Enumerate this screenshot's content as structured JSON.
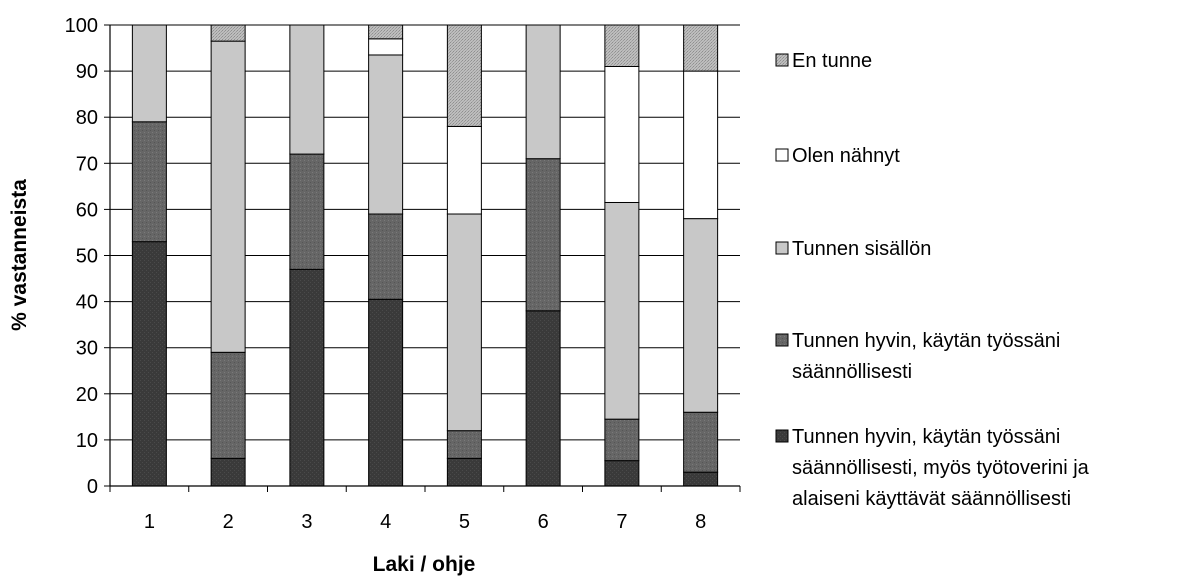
{
  "chart_data": {
    "type": "bar",
    "stacked": true,
    "percent": true,
    "xlabel": "Laki / ohje",
    "ylabel": "% vastanneista",
    "ylim": [
      0,
      100
    ],
    "yticks": [
      0,
      10,
      20,
      30,
      40,
      50,
      60,
      70,
      80,
      90,
      100
    ],
    "categories": [
      "1",
      "2",
      "3",
      "4",
      "5",
      "6",
      "7",
      "8"
    ],
    "grid": "horizontal",
    "legend_position": "right",
    "series": [
      {
        "name": "Tunnen hyvin, käytän työssäni säännöllisesti, myös työtoverini ja alaiseni käyttävät säännöllisesti",
        "color": "#3a3a3a",
        "values": [
          53,
          6,
          47,
          40.5,
          6,
          38,
          5.5,
          3
        ]
      },
      {
        "name": "Tunnen hyvin, käytän työssäni säännöllisesti",
        "color": "#6a6a6a",
        "values": [
          26,
          23,
          25,
          18.5,
          6,
          33,
          9,
          13
        ]
      },
      {
        "name": "Tunnen sisällön",
        "color": "#c8c8c8",
        "values": [
          21,
          67.5,
          28,
          34.5,
          47,
          29,
          47,
          42
        ]
      },
      {
        "name": "Olen nähnyt",
        "color": "#ffffff",
        "values": [
          0,
          0,
          0,
          3.5,
          19,
          0,
          29.5,
          32
        ]
      },
      {
        "name": "En tunne",
        "color": "#b0b0b0",
        "values": [
          0,
          3.5,
          0,
          3,
          22,
          0,
          9,
          10
        ]
      }
    ],
    "legend_order": [
      "En tunne",
      "Olen nähnyt",
      "Tunnen sisällön",
      "Tunnen hyvin, käytän työssäni säännöllisesti",
      "Tunnen hyvin, käytän työssäni säännöllisesti, myös työtoverini ja alaiseni käyttävät säännöllisesti"
    ],
    "legend_lines": [
      [
        "En tunne"
      ],
      [
        "Olen nähnyt"
      ],
      [
        "Tunnen sisällön"
      ],
      [
        "Tunnen hyvin, käytän työssäni",
        "säännöllisesti"
      ],
      [
        "Tunnen hyvin, käytän työssäni",
        "säännöllisesti, myös työtoverini ja",
        "alaiseni käyttävät säännöllisesti"
      ]
    ]
  }
}
